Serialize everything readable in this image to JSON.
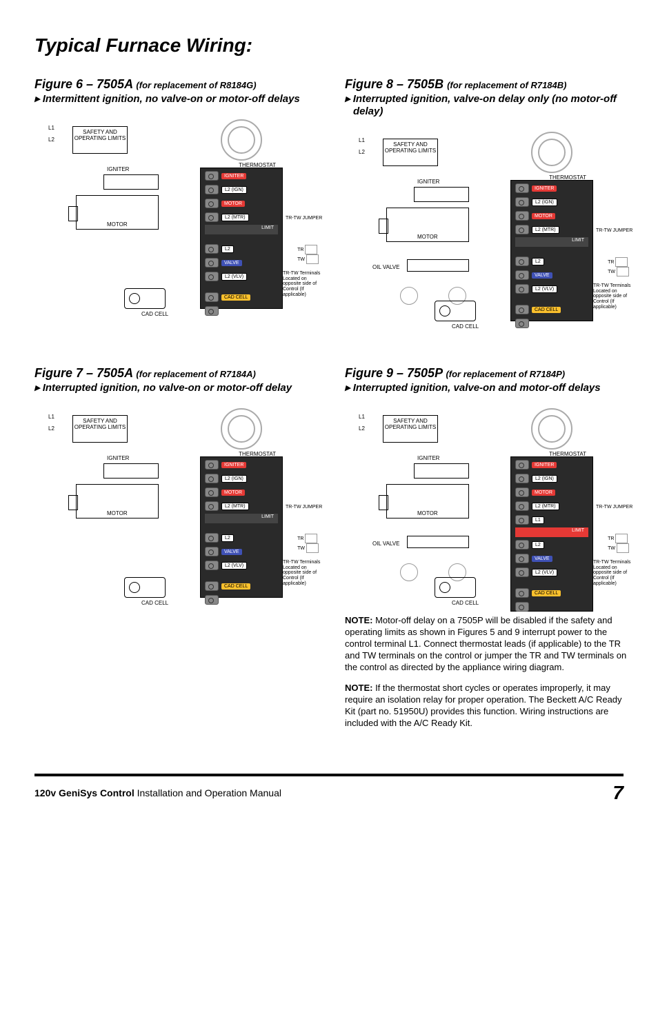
{
  "page": {
    "title": "Typical Furnace Wiring:",
    "footer_left_bold": "120v GeniSys Control",
    "footer_left_rest": " Installation and Operation Manual",
    "footer_page": "7"
  },
  "figures": {
    "f6": {
      "title": "Figure 6 – 7505A",
      "sub": "(for replacement of R8184G)",
      "desc": "Intermittent ignition, no valve-on or motor-off delays"
    },
    "f7": {
      "title": "Figure 7 – 7505A",
      "sub": "(for replacement of R7184A)",
      "desc": "Interrupted ignition, no valve-on or motor-off delay"
    },
    "f8": {
      "title": "Figure 8 – 7505B",
      "sub": "(for replacement of R7184B)",
      "desc": "Interrupted ignition, valve-on delay only (no motor-off delay)"
    },
    "f9": {
      "title": "Figure 9 – 7505P",
      "sub": "(for replacement of R7184P)",
      "desc": "Interrupted ignition, valve-on and motor-off delays"
    }
  },
  "labels": {
    "limits": "SAFETY AND OPERATING LIMITS",
    "thermostat": "THERMOSTAT",
    "igniter": "IGNITER",
    "motor": "MOTOR",
    "oilvalve": "OIL VALVE",
    "cadcell": "CAD CELL",
    "l1": "L1",
    "l2": "L2",
    "trtw_jumper": "TR-TW JUMPER",
    "tr": "TR",
    "tw": "TW",
    "trtw_text": "TR-TW Terminals Located on opposite side of Control (If applicable)"
  },
  "terminals": {
    "igniter": "IGNITER",
    "l2_ign": "L2 (IGN)",
    "motor": "MOTOR",
    "l2_mtr": "L2 (MTR)",
    "limit": "LIMIT",
    "l1": "L1",
    "l2": "L2",
    "valve": "VALVE",
    "l2_vlv": "L2 (VLV)",
    "cad": "CAD CELL"
  },
  "notes": {
    "n1_label": "NOTE:",
    "n1": " Motor-off delay on a 7505P will be disabled if the safety and operating limits as shown in Figures 5 and 9 interrupt power to the control terminal L1. Connect thermostat leads (if applicable) to the TR and TW terminals on the control or jumper the TR and TW terminals on the control as directed by the appliance wiring diagram.",
    "n2_label": "NOTE:",
    "n2": " If the thermostat short cycles or operates improperly, it may require an isolation relay for proper operation. The Beckett A/C Ready Kit (part no. 51950U) provides this function.  Wiring instructions are included with the A/C Ready Kit."
  },
  "colors": {
    "red": "#e53935",
    "blue": "#3f51b5",
    "yellow": "#fbc02d",
    "dark": "#2a2a2a"
  }
}
